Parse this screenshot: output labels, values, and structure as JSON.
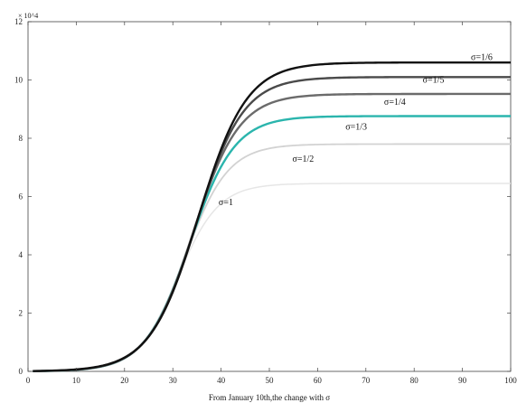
{
  "chart_data": {
    "type": "line",
    "title": "",
    "xlabel": "From January 10th,the change with σ",
    "ylabel": "",
    "y_multiplier_label": "× 10^4",
    "xlim": [
      0,
      100
    ],
    "ylim": [
      0,
      120000
    ],
    "x_ticks": [
      0,
      10,
      20,
      30,
      40,
      50,
      60,
      70,
      80,
      90,
      100
    ],
    "y_ticks": [
      0,
      20000,
      40000,
      60000,
      80000,
      100000,
      120000
    ],
    "y_tick_labels": [
      "0",
      "2",
      "4",
      "6",
      "8",
      "10",
      "12"
    ],
    "x_tick_labels": [
      "0",
      "10",
      "20",
      "30",
      "40",
      "50",
      "60",
      "70",
      "80",
      "90",
      "100"
    ],
    "grid": false,
    "series": [
      {
        "name": "σ=1",
        "color": "#e6e6e6",
        "width": 1.5,
        "plateau": 64500,
        "midpoint": 31.0,
        "rate": 0.235,
        "label_at": [
          41,
          57000
        ]
      },
      {
        "name": "σ=1/2",
        "color": "#d2d2d2",
        "width": 1.8,
        "plateau": 78000,
        "midpoint": 32.5,
        "rate": 0.225,
        "label_at": [
          57,
          72000
        ]
      },
      {
        "name": "σ=1/3",
        "color": "#2bb5ad",
        "width": 2.4,
        "plateau": 87600,
        "midpoint": 33.5,
        "rate": 0.215,
        "label_at": [
          68,
          83000
        ]
      },
      {
        "name": "σ=1/4",
        "color": "#6b6b6b",
        "width": 2.4,
        "plateau": 95200,
        "midpoint": 34.2,
        "rate": 0.21,
        "label_at": [
          76,
          91500
        ]
      },
      {
        "name": "σ=1/5",
        "color": "#4a4a4a",
        "width": 2.4,
        "plateau": 101000,
        "midpoint": 34.8,
        "rate": 0.205,
        "label_at": [
          84,
          99000
        ]
      },
      {
        "name": "σ=1/6",
        "color": "#111111",
        "width": 2.4,
        "plateau": 106000,
        "midpoint": 35.3,
        "rate": 0.2,
        "label_at": [
          94,
          106800
        ]
      }
    ]
  }
}
